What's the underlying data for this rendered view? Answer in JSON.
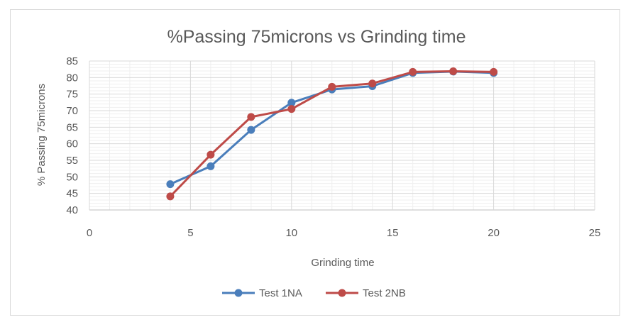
{
  "chart_data": {
    "type": "line",
    "title": "%Passing 75microns vs Grinding time",
    "xlabel": "Grinding time",
    "ylabel": "% Passing 75microns",
    "xlim": [
      0,
      25
    ],
    "ylim": [
      40,
      85
    ],
    "x_ticks": [
      "0",
      "5",
      "10",
      "15",
      "20",
      "25"
    ],
    "y_ticks": [
      "40",
      "45",
      "50",
      "55",
      "60",
      "65",
      "70",
      "75",
      "80",
      "85"
    ],
    "grid": true,
    "legend_position": "bottom",
    "series": [
      {
        "name": "Test 1NA",
        "color": "#4a7ebb",
        "x": [
          4,
          6,
          8,
          10,
          12,
          14,
          16,
          18,
          20
        ],
        "y": [
          47.8,
          53.2,
          64.2,
          72.4,
          76.4,
          77.4,
          81.4,
          81.8,
          81.4
        ]
      },
      {
        "name": "Test 2NB",
        "color": "#be4b48",
        "x": [
          4,
          6,
          8,
          10,
          12,
          14,
          16,
          18,
          20
        ],
        "y": [
          44.1,
          56.7,
          68.1,
          70.5,
          77.2,
          78.2,
          81.7,
          81.9,
          81.7
        ]
      }
    ]
  }
}
